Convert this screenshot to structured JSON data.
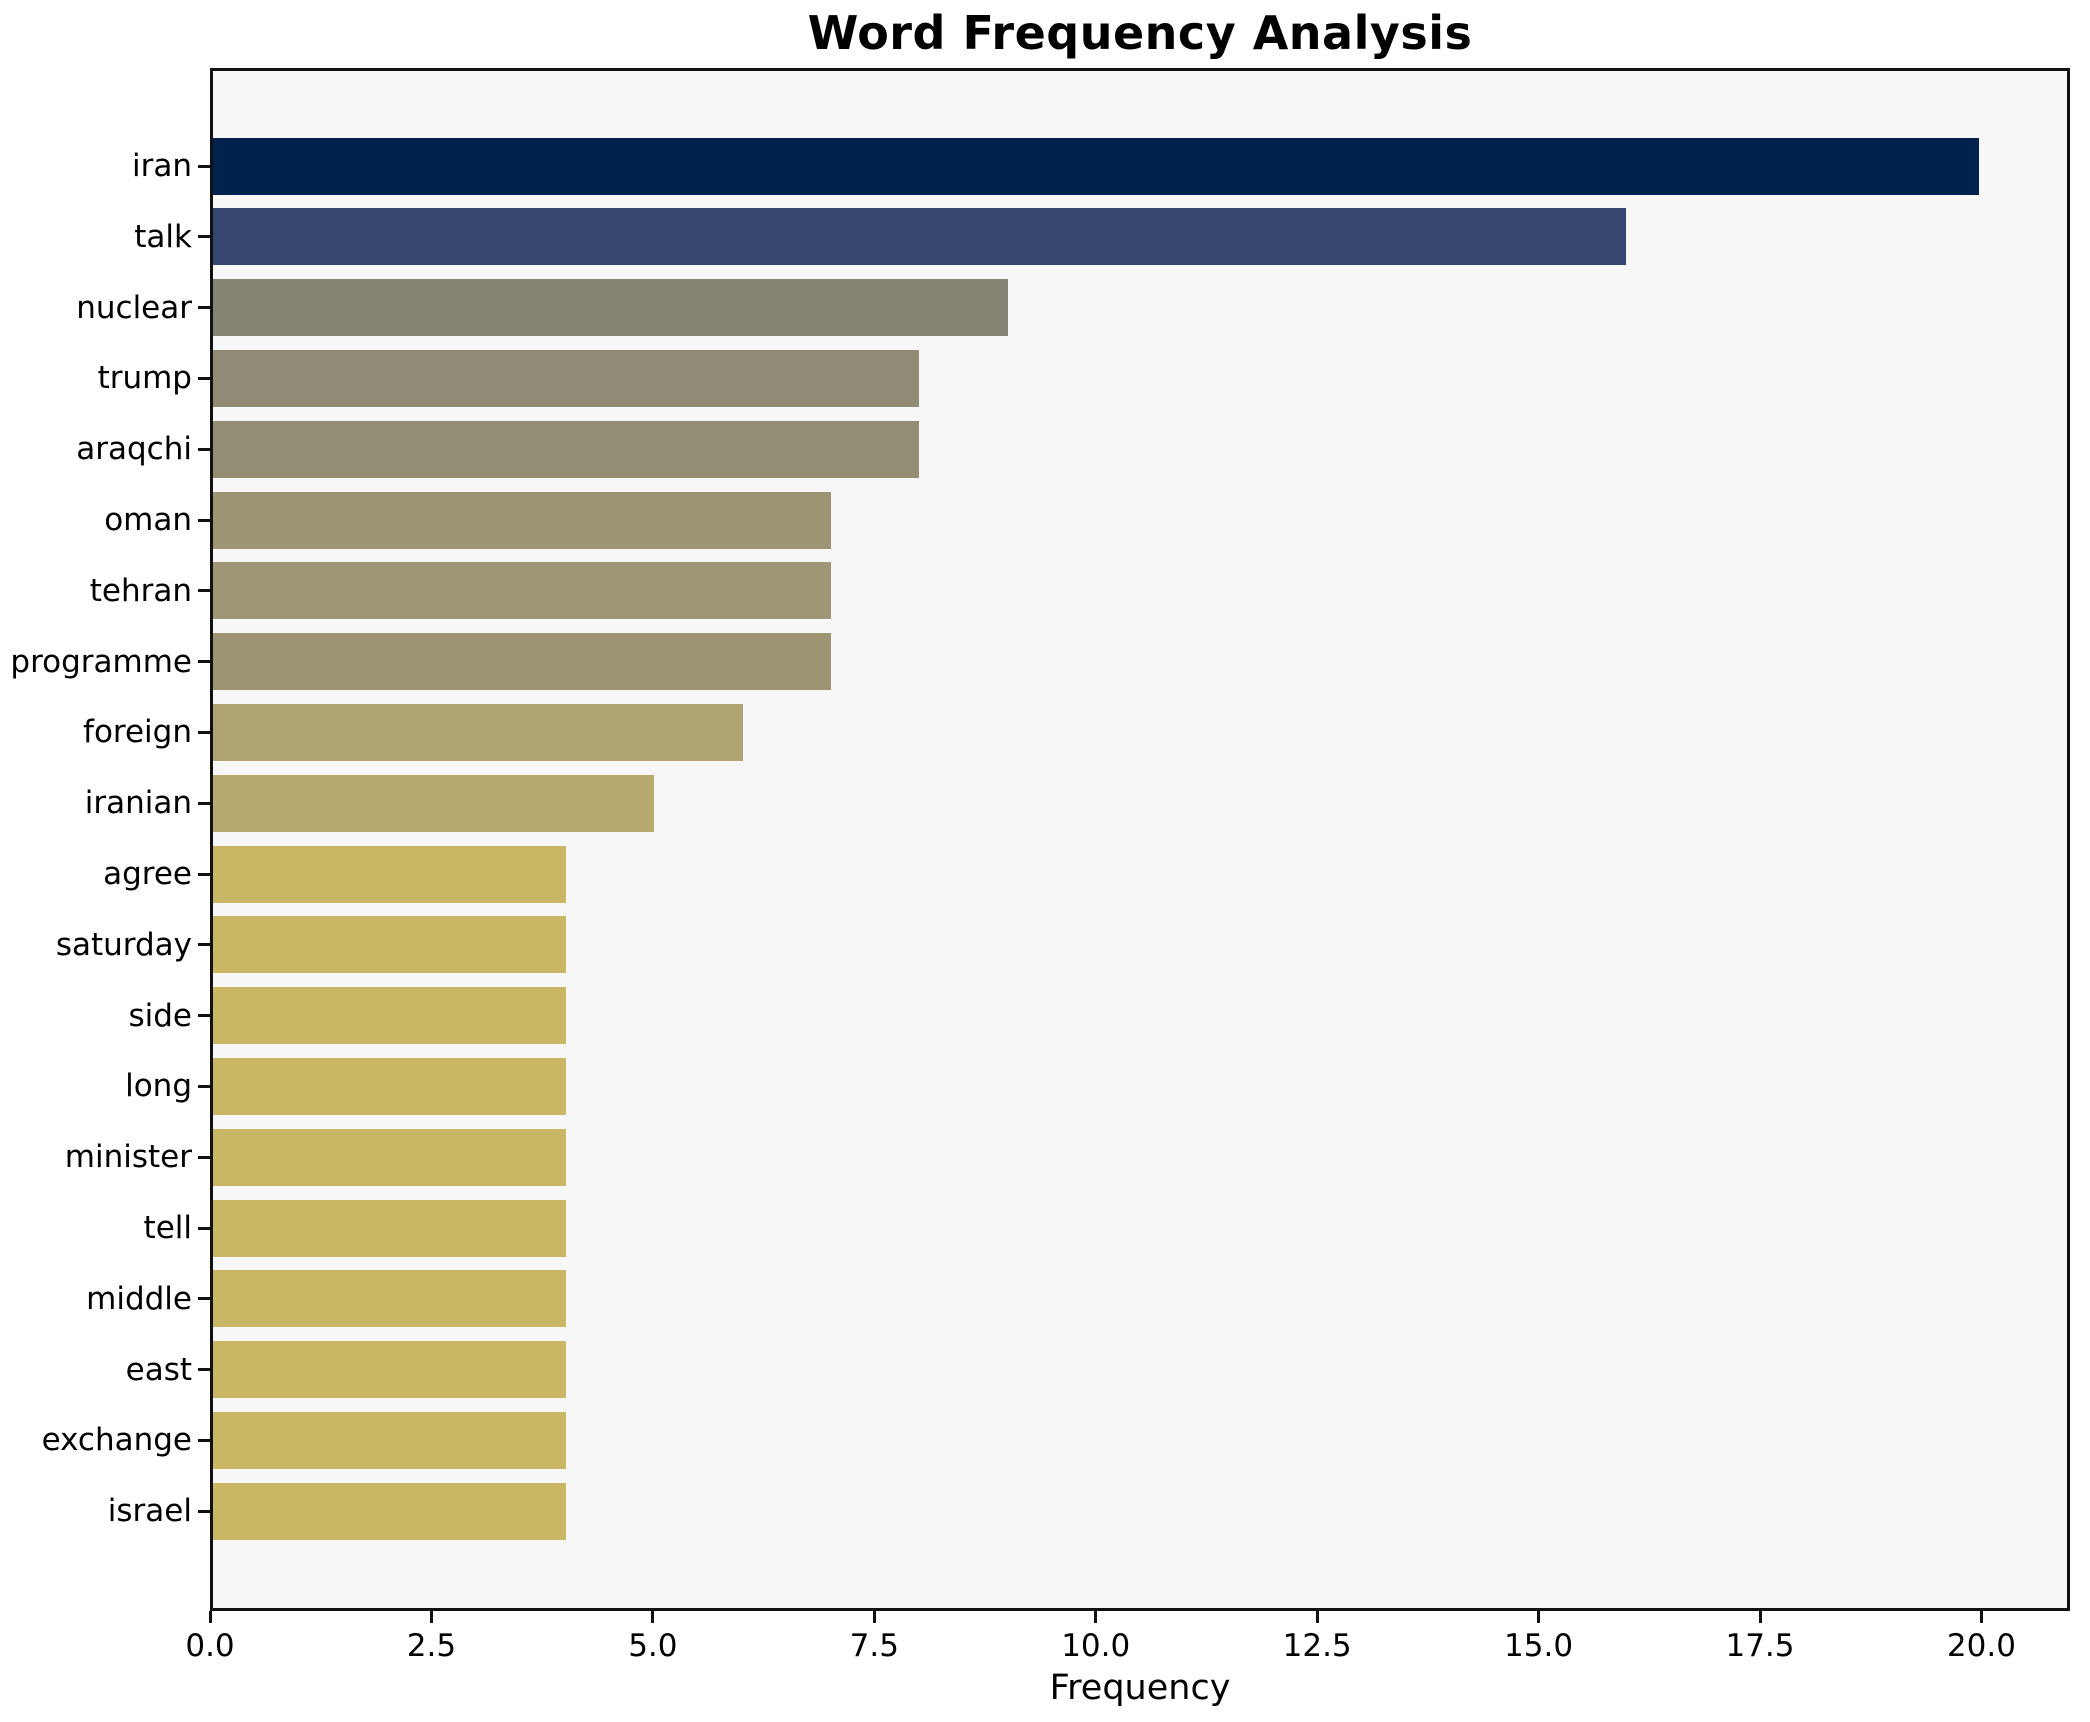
{
  "title": "Word Frequency Analysis",
  "xlabel": "Frequency",
  "colors": {
    "figure_bg": "#ffffff",
    "plot_bg": "#f7f7f8",
    "spine": "#111111",
    "text": "#000000"
  },
  "chart_data": {
    "type": "bar",
    "orientation": "horizontal",
    "title": "Word Frequency Analysis",
    "xlabel": "Frequency",
    "ylabel": "",
    "categories": [
      "iran",
      "talk",
      "nuclear",
      "trump",
      "araqchi",
      "oman",
      "tehran",
      "programme",
      "foreign",
      "iranian",
      "agree",
      "saturday",
      "side",
      "long",
      "minister",
      "tell",
      "middle",
      "east",
      "exchange",
      "israel"
    ],
    "values": [
      20,
      16,
      9,
      8,
      8,
      7,
      7,
      7,
      6,
      5,
      4,
      4,
      4,
      4,
      4,
      4,
      4,
      4,
      4,
      4
    ],
    "bar_colors": [
      "#00224E",
      "#36476F",
      "#868274",
      "#918A74",
      "#938D74",
      "#9D9574",
      "#9E9674",
      "#9D9472",
      "#AEA371",
      "#B7AA6E",
      "#C9B765",
      "#C9B765",
      "#C9B765",
      "#C9B765",
      "#C9B765",
      "#C9B765",
      "#C9B765",
      "#C9B765",
      "#C9B765",
      "#C9B765"
    ],
    "xlim": [
      0,
      21
    ],
    "xticks": [
      0.0,
      2.5,
      5.0,
      7.5,
      10.0,
      12.5,
      15.0,
      17.5,
      20.0
    ],
    "xtick_labels": [
      "0.0",
      "2.5",
      "5.0",
      "7.5",
      "10.0",
      "12.5",
      "15.0",
      "17.5",
      "20.0"
    ],
    "grid": false,
    "legend": null
  }
}
